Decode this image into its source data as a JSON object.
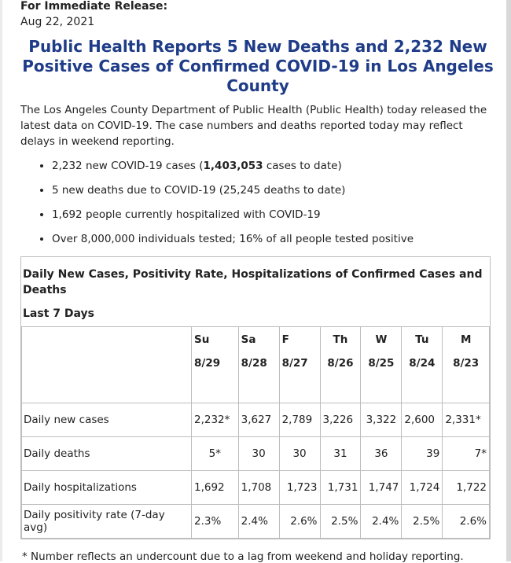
{
  "release_label": "For Immediate Release:",
  "release_date": "Aug 22, 2021",
  "headline": "Public Health Reports 5 New Deaths and 2,232 New Positive Cases of Confirmed COVID-19 in Los Angeles County",
  "intro": "The Los Angeles County Department of Public Health (Public Health) today released the latest data on COVID-19. The case numbers and deaths reported today may reflect delays in weekend reporting.",
  "bullets": [
    {
      "pre": "2,232 new COVID-19 cases (",
      "bold": "1,403,053",
      "post": " cases to date)"
    },
    {
      "pre": "5 new deaths due to COVID-19 (25,245 deaths to date)",
      "bold": "",
      "post": ""
    },
    {
      "pre": "1,692 people currently hospitalized with COVID-19",
      "bold": "",
      "post": ""
    },
    {
      "pre": "Over 8,000,000 individuals tested; 16% of all people tested positive",
      "bold": "",
      "post": ""
    }
  ],
  "table": {
    "title": "Daily New Cases, Positivity Rate, Hospitalizations of Confirmed Cases and Deaths",
    "subtitle": "Last 7 Days",
    "days": [
      {
        "day": "Su",
        "date": "8/29"
      },
      {
        "day": "Sa",
        "date": "8/28"
      },
      {
        "day": "F",
        "date": "8/27"
      },
      {
        "day": "Th",
        "date": "8/26"
      },
      {
        "day": "W",
        "date": "8/25"
      },
      {
        "day": "Tu",
        "date": "8/24"
      },
      {
        "day": "M",
        "date": "8/23"
      }
    ],
    "rows": [
      {
        "label": "Daily new cases",
        "values": [
          "2,232*",
          "3,627",
          "2,789",
          "3,226",
          "3,322",
          "2,600",
          "2,331*"
        ]
      },
      {
        "label": "Daily deaths",
        "values": [
          "5*",
          "30",
          "30",
          "31",
          "36",
          "39",
          "7*"
        ]
      },
      {
        "label": "Daily hospitalizations",
        "values": [
          "1,692",
          "1,708",
          "1,723",
          "1,731",
          "1,747",
          "1,724",
          "1,722"
        ]
      },
      {
        "label": "Daily positivity rate (7-day avg)",
        "values": [
          "2.3%",
          "2.4%",
          "2.6%",
          "2.5%",
          "2.4%",
          "2.5%",
          "2.6%"
        ]
      }
    ]
  },
  "footnote": "* Number reflects an undercount due to a lag from weekend and holiday reporting."
}
